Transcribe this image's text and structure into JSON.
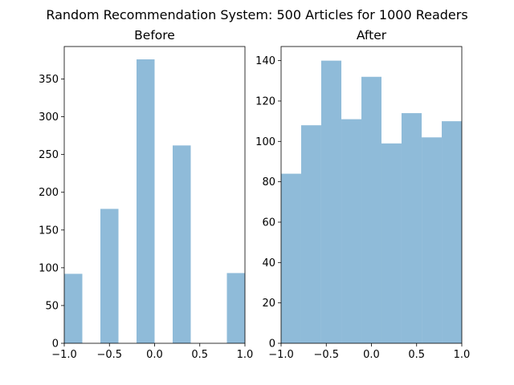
{
  "chart_data": {
    "title": "Random Recommendation System: 500 Articles for 1000 Readers",
    "panels": [
      {
        "type": "bar",
        "title": "Before",
        "xlim": [
          -1.0,
          1.0
        ],
        "ylim": [
          0,
          393
        ],
        "xticks": [
          -1.0,
          -0.5,
          0.0,
          0.5,
          1.0
        ],
        "xtick_labels": [
          "−1.0",
          "−0.5",
          "0.0",
          "0.5",
          "1.0"
        ],
        "yticks": [
          0,
          50,
          100,
          150,
          200,
          250,
          300,
          350
        ],
        "ytick_labels": [
          "0",
          "50",
          "100",
          "150",
          "200",
          "250",
          "300",
          "350"
        ],
        "bin_edges": [
          -1.0,
          -0.8,
          -0.6,
          -0.4,
          -0.2,
          0.0,
          0.2,
          0.4,
          0.6,
          0.8,
          1.0
        ],
        "values": [
          92,
          0,
          178,
          0,
          376,
          0,
          262,
          0,
          0,
          93
        ],
        "grid": false
      },
      {
        "type": "bar",
        "title": "After",
        "xlim": [
          -1.0,
          1.0
        ],
        "ylim": [
          0,
          147
        ],
        "xticks": [
          -1.0,
          -0.5,
          0.0,
          0.5,
          1.0
        ],
        "xtick_labels": [
          "−1.0",
          "−0.5",
          "0.0",
          "0.5",
          "1.0"
        ],
        "yticks": [
          0,
          20,
          40,
          60,
          80,
          100,
          120,
          140
        ],
        "ytick_labels": [
          "0",
          "20",
          "40",
          "60",
          "80",
          "100",
          "120",
          "140"
        ],
        "bin_edges": [
          -1.0,
          -0.778,
          -0.556,
          -0.333,
          -0.111,
          0.111,
          0.333,
          0.556,
          0.778,
          1.0
        ],
        "values": [
          84,
          108,
          140,
          111,
          132,
          99,
          114,
          102,
          110
        ],
        "grid": false
      }
    ],
    "colors": {
      "bar": "#8fbbd9",
      "axes": "#000000"
    }
  }
}
